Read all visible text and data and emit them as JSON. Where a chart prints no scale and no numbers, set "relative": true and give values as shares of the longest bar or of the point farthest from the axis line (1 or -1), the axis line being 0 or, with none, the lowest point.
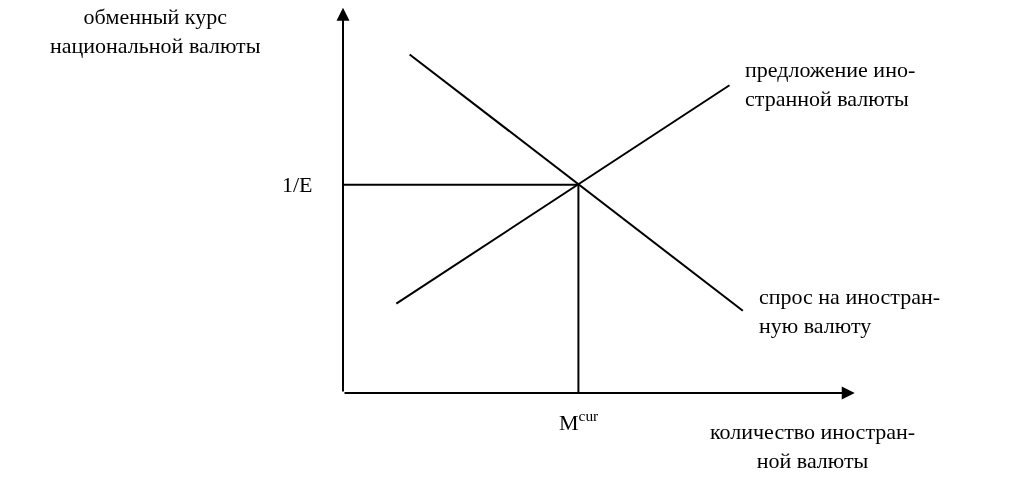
{
  "chart_data": {
    "type": "line",
    "relative": true,
    "legend": false,
    "xlabel": "количество иностран-\nной валюты",
    "ylabel": "обменный курс\nнациональной валюты",
    "categories": [
      null,
      null,
      null,
      null,
      null,
      null,
      null,
      null,
      null,
      null,
      null,
      null,
      null,
      null,
      null,
      null,
      null,
      null,
      null,
      null,
      null,
      null,
      null,
      null,
      null,
      null,
      null,
      null,
      null,
      null,
      null
    ],
    "series": [
      {
        "name": "спрос на иностран-\nную валюту",
        "color": "#000000",
        "values": [
          null,
          null,
          null,
          null,
          null,
          1.0,
          null,
          null,
          null,
          null,
          null,
          null,
          null,
          null,
          null,
          null,
          null,
          null,
          null,
          null,
          null,
          null,
          null,
          null,
          null,
          null,
          null,
          null,
          null,
          null,
          0.243
        ]
      },
      {
        "name": "предложение ино-\nстранной валюты",
        "color": "#000000",
        "values": [
          null,
          null,
          null,
          null,
          0.264,
          null,
          null,
          null,
          null,
          null,
          null,
          null,
          null,
          null,
          null,
          null,
          null,
          null,
          null,
          null,
          null,
          null,
          null,
          null,
          null,
          null,
          null,
          null,
          null,
          0.909,
          null
        ]
      }
    ],
    "annotations": [
      "M$^{cur}$"
    ],
    "ref_lines": [
      {
        "axis": "y",
        "value": 0.615,
        "label": "1/E"
      }
    ]
  }
}
